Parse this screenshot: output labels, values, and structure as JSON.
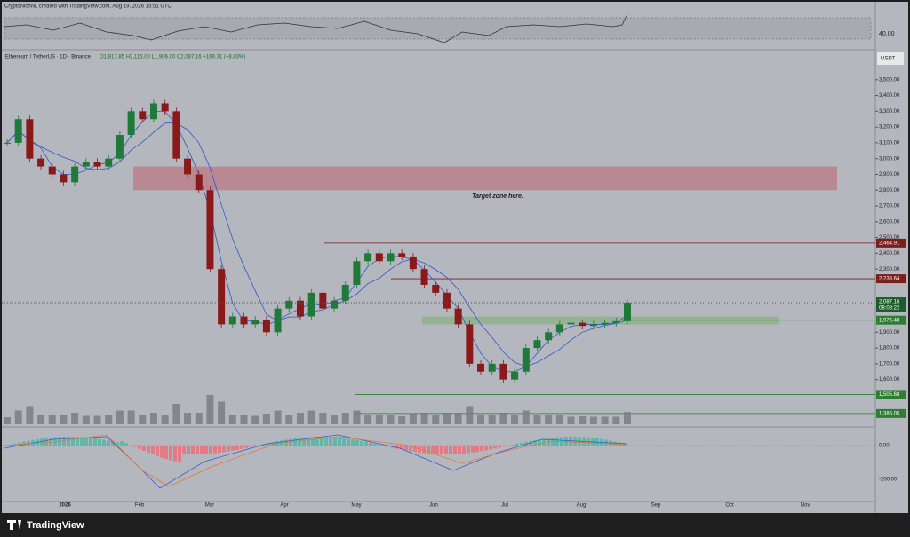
{
  "header": {
    "attribution": "CryptoNichNL created with TradingView.com, Aug 19, 2026 15:51 UTC",
    "symbol": "Ethereum / TetherUS · 1D · Binance",
    "ohlc": "O1,917.85 H2,115.00 L1,906.00 C2,087.16 +169.31 (+8.83%)"
  },
  "rsi_panel": {
    "level_label": "40.00"
  },
  "price_chart": {
    "type": "candlestick",
    "currency": "USDT",
    "ylim": [
      1300,
      3690
    ],
    "yticks": [
      {
        "value": 3500,
        "label": "3,500.00"
      },
      {
        "value": 3400,
        "label": "3,400.00"
      },
      {
        "value": 3300,
        "label": "3,300.00"
      },
      {
        "value": 3200,
        "label": "3,200.00"
      },
      {
        "value": 3100,
        "label": "3,100.00"
      },
      {
        "value": 3000,
        "label": "3,000.00"
      },
      {
        "value": 2900,
        "label": "2,900.00"
      },
      {
        "value": 2800,
        "label": "2,800.00"
      },
      {
        "value": 2700,
        "label": "2,700.00"
      },
      {
        "value": 2600,
        "label": "2,600.00"
      },
      {
        "value": 2500,
        "label": "2,500.00"
      },
      {
        "value": 2400,
        "label": "2,400.00"
      },
      {
        "value": 2300,
        "label": "2,300.00"
      },
      {
        "value": 1900,
        "label": "1,900.00"
      },
      {
        "value": 1800,
        "label": "1,800.00"
      },
      {
        "value": 1700,
        "label": "1,700.00"
      },
      {
        "value": 1600,
        "label": "1,600.00"
      }
    ],
    "closes": [
      3100,
      3250,
      3000,
      2950,
      2900,
      2850,
      2950,
      2980,
      2950,
      3000,
      3150,
      3300,
      3250,
      3350,
      3300,
      3000,
      2900,
      2800,
      2300,
      1950,
      2000,
      1950,
      1980,
      1900,
      2050,
      2100,
      2000,
      2150,
      2050,
      2100,
      2200,
      2350,
      2400,
      2350,
      2400,
      2380,
      2300,
      2200,
      2150,
      2050,
      1950,
      1700,
      1650,
      1700,
      1600,
      1650,
      1800,
      1850,
      1900,
      1950,
      1960,
      1940,
      1950,
      1960,
      1970,
      2087
    ],
    "colors": {
      "up": "#1f7a3a",
      "down": "#8a1a1a"
    },
    "levels": [
      {
        "value": 2464.91,
        "label": "2,464.91",
        "color": "#7b1e1e"
      },
      {
        "value": 2238.64,
        "label": "2,238.64",
        "color": "#7b1e1e"
      },
      {
        "value": 1976.48,
        "label": "1,976.48",
        "color": "#2e7d32"
      },
      {
        "value": 1505.68,
        "label": "1,505.68",
        "color": "#2e7d32"
      },
      {
        "value": 1385.05,
        "label": "1,385.05",
        "color": "#2e7d32"
      }
    ],
    "last_price": {
      "value": 2087.16,
      "label": "2,087.16",
      "countdown": "08:08:22"
    },
    "target_zone": {
      "range": [
        2800,
        2950
      ],
      "label": "Target zone here."
    },
    "support_zone": {
      "range": [
        1950,
        2000
      ]
    },
    "x_labels": [
      "2026",
      "Feb",
      "Mar",
      "Apr",
      "May",
      "Jun",
      "Jul",
      "Aug",
      "Sep",
      "Oct",
      "Nov"
    ]
  },
  "macd_panel": {
    "labels": [
      "0.00",
      "-200.00"
    ]
  },
  "footer": {
    "brand": "TradingView"
  }
}
